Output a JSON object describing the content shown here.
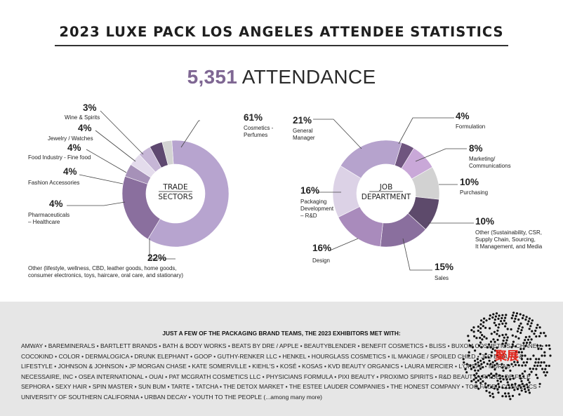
{
  "title": "2023 LUXE PACK LOS ANGELES ATTENDEE STATISTICS",
  "attendance": {
    "value": "5,351",
    "label": "ATTENDANCE"
  },
  "chart_data": [
    {
      "type": "pie",
      "variant": "donut",
      "center_label": [
        "TRADE",
        "SECTORS"
      ],
      "slices": [
        {
          "pct": "61%",
          "value": 61,
          "label": [
            "Cosmetics -",
            "Perfumes"
          ],
          "color": "#b7a4cf"
        },
        {
          "pct": "22%",
          "value": 22,
          "label": [
            "Other (lifestyle, wellness, CBD, leather goods, home goods,",
            "consumer electronics, toys, haircare, oral care, and stationary)"
          ],
          "color": "#8a6f9e"
        },
        {
          "pct": "4%",
          "value": 4,
          "label": [
            "Pharmaceuticals",
            "– Healthcare"
          ],
          "color": "#a691b8"
        },
        {
          "pct": "4%",
          "value": 4,
          "label": [
            "Fashion Accessories"
          ],
          "color": "#e4dcec"
        },
        {
          "pct": "4%",
          "value": 4,
          "label": [
            "Food Industry - Fine food"
          ],
          "color": "#c6b6d6"
        },
        {
          "pct": "4%",
          "value": 4,
          "label": [
            "Jewelry / Watches"
          ],
          "color": "#5e4870"
        },
        {
          "pct": "3%",
          "value": 3,
          "label": [
            "Wine & Spirits"
          ],
          "color": "#d3d3d3"
        }
      ]
    },
    {
      "type": "pie",
      "variant": "donut",
      "center_label": [
        "JOB",
        "DEPARTMENT"
      ],
      "slices": [
        {
          "pct": "4%",
          "value": 4,
          "label": [
            "Formulation"
          ],
          "color": "#6f557f"
        },
        {
          "pct": "8%",
          "value": 8,
          "label": [
            "Marketing/",
            "Communications"
          ],
          "color": "#c9a8d8"
        },
        {
          "pct": "10%",
          "value": 10,
          "label": [
            "Purchasing"
          ],
          "color": "#d2d2d2"
        },
        {
          "pct": "10%",
          "value": 10,
          "label": [
            "Other (Sustainability, CSR,",
            "Supply Chain, Sourcing,",
            "It Management, and Media"
          ],
          "color": "#5d4a6b"
        },
        {
          "pct": "15%",
          "value": 15,
          "label": [
            "Sales"
          ],
          "color": "#8a6f9e"
        },
        {
          "pct": "16%",
          "value": 16,
          "label": [
            "Design"
          ],
          "color": "#a98bbc"
        },
        {
          "pct": "16%",
          "value": 16,
          "label": [
            "Packaging",
            "Development",
            "– R&D"
          ],
          "color": "#dcd2e6"
        },
        {
          "pct": "21%",
          "value": 21,
          "label": [
            "General",
            "Manager"
          ],
          "color": "#b6a3cd"
        }
      ]
    }
  ],
  "footer": {
    "title": "JUST A FEW OF THE PACKAGING BRAND TEAMS, THE 2023 EXHIBITORS MET WITH:",
    "brands": "AMWAY • BAREMINERALS • BARTLETT BRANDS • BATH & BODY WORKS • BEATS BY DRE / APPLE • BEAUTYBLENDER • BENEFIT COSMETICS • BLISS • BUXOM COSMETICS • CHANEL • COCOKIND • COLOR • DERMALOGICA • DRUNK ELEPHANT • GOOP • GUTHY-RENKER LLC • HENKEL • HOURGLASS COSMETICS • IL MAKIAGE / SPOILED CHILD • JLO BEAUTY & LIFESTYLE • JOHNSON & JOHNSON • JP MORGAN CHASE • KATE SOMERVILLE • KIEHL'S • KOSÉ • KOSAS • KVD BEAUTY ORGANICS • LAURA MERCIER • L'OREAL • MURAD • NECESSAIRE, INC • OSEA INTERNATIONAL • OUAI • PAT MCGRATH COSMETICS LLC • PHYSICIANS FORMULA • PIXI BEAUTY • PROXIMO SPIRITS • R&D BEAUTY • RITUEL DE FILLE SEPHORA • SEXY HAIR • SPIN MASTER • SUN BUM • TARTE • TATCHA • THE DETOX MARKET • THE ESTEE LAUDER COMPANIES • THE HONEST COMPANY • TOO FACED COSMETICS • UNIVERSITY OF SOUTHERN CALIFORNIA • URBAN DECAY • YOUTH TO THE PEOPLE (...among many more)",
    "watermark": "聚展"
  },
  "colors": {
    "accent": "#7f6793",
    "footer_bg": "#e6e6e6",
    "leader": "#444444"
  }
}
